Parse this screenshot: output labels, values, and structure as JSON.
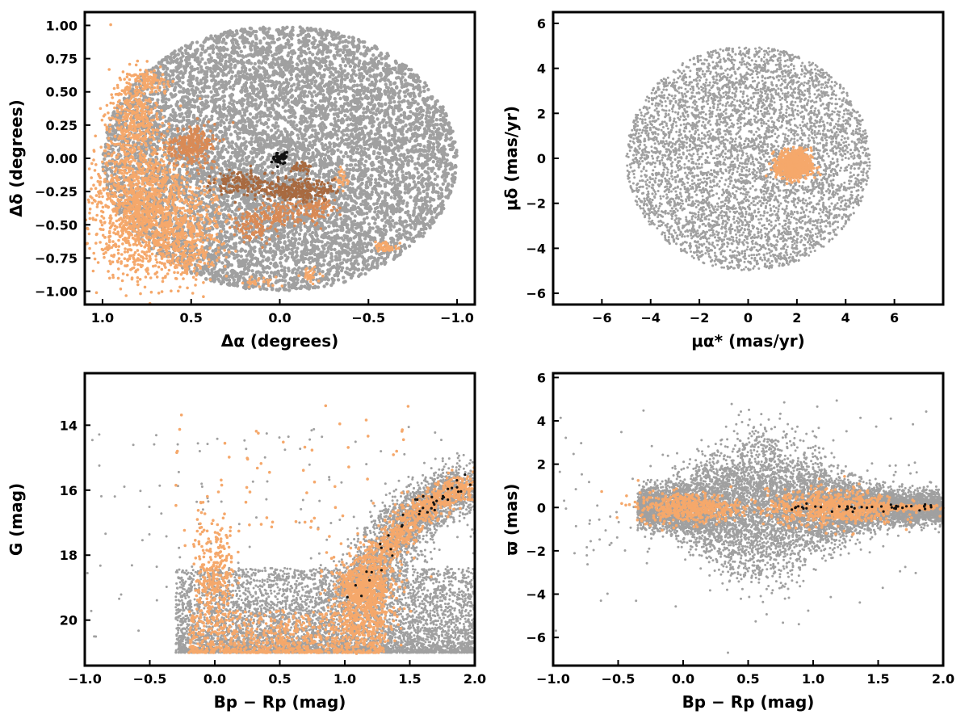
{
  "colors": {
    "field": "#a0a0a0",
    "light_members": "#f5a86b",
    "mid_members": "#d98a55",
    "dark_members": "#a86a40",
    "core": "#111111"
  },
  "chart_data": [
    {
      "type": "scatter",
      "panel": "sky-positions",
      "xlabel": "Δα (degrees)",
      "ylabel": "Δδ (degrees)",
      "xlim": [
        1.1,
        -1.1
      ],
      "ylim": [
        -1.1,
        1.1
      ],
      "x_ticks": [
        1.0,
        0.5,
        0.0,
        -0.5,
        -1.0
      ],
      "x_tick_labels": [
        "1.0",
        "0.5",
        "0.0",
        "−0.5",
        "−1.0"
      ],
      "y_ticks": [
        1.0,
        0.75,
        0.5,
        0.25,
        0.0,
        -0.25,
        -0.5,
        -0.75,
        -1.0
      ],
      "y_tick_labels": [
        "1.00",
        "0.75",
        "0.50",
        "0.25",
        "0.00",
        "−0.25",
        "−0.50",
        "−0.75",
        "−1.00"
      ],
      "grid": false,
      "field_region": {
        "center": [
          0.0,
          0.0
        ],
        "radius_x": 1.0,
        "radius_y": 1.0
      },
      "member_clumps": [
        {
          "group": "light",
          "center": [
            0.78,
            -0.38
          ],
          "spread": [
            0.14,
            0.26
          ],
          "n": 1400
        },
        {
          "group": "light",
          "center": [
            0.82,
            0.32
          ],
          "spread": [
            0.07,
            0.16
          ],
          "n": 380
        },
        {
          "group": "light",
          "center": [
            0.52,
            -0.58
          ],
          "spread": [
            0.1,
            0.18
          ],
          "n": 420
        },
        {
          "group": "light",
          "center": [
            0.72,
            0.58
          ],
          "spread": [
            0.05,
            0.04
          ],
          "n": 80
        },
        {
          "group": "light",
          "center": [
            -0.6,
            -0.67
          ],
          "spread": [
            0.03,
            0.02
          ],
          "n": 40
        },
        {
          "group": "light",
          "center": [
            -0.17,
            -0.88
          ],
          "spread": [
            0.03,
            0.03
          ],
          "n": 30
        },
        {
          "group": "light",
          "center": [
            0.12,
            -0.93
          ],
          "spread": [
            0.04,
            0.02
          ],
          "n": 30
        },
        {
          "group": "light",
          "center": [
            -0.35,
            -0.15
          ],
          "spread": [
            0.02,
            0.04
          ],
          "n": 30
        },
        {
          "group": "mid",
          "center": [
            0.5,
            0.1
          ],
          "spread": [
            0.07,
            0.08
          ],
          "n": 260
        },
        {
          "group": "mid",
          "center": [
            0.15,
            -0.52
          ],
          "spread": [
            0.05,
            0.05
          ],
          "n": 80
        },
        {
          "group": "mid",
          "center": [
            0.0,
            -0.42
          ],
          "spread": [
            0.1,
            0.05
          ],
          "n": 140
        },
        {
          "group": "mid",
          "center": [
            -0.22,
            -0.38
          ],
          "spread": [
            0.06,
            0.05
          ],
          "n": 80
        },
        {
          "group": "dark",
          "center": [
            -0.1,
            -0.24
          ],
          "spread": [
            0.1,
            0.04
          ],
          "n": 260
        },
        {
          "group": "dark",
          "center": [
            0.2,
            -0.18
          ],
          "spread": [
            0.08,
            0.05
          ],
          "n": 150
        },
        {
          "group": "dark",
          "center": [
            -0.12,
            -0.07
          ],
          "spread": [
            0.03,
            0.02
          ],
          "n": 30
        },
        {
          "group": "core",
          "center": [
            0.0,
            0.0
          ],
          "spread": [
            0.02,
            0.02
          ],
          "n": 40
        }
      ]
    },
    {
      "type": "scatter",
      "panel": "proper-motions",
      "xlabel": "μα* (mas/yr)",
      "ylabel": "μδ (mas/yr)",
      "xlim": [
        -8,
        8
      ],
      "ylim": [
        -6.5,
        6.5
      ],
      "x_ticks": [
        -6,
        -4,
        -2,
        0,
        2,
        4,
        6
      ],
      "x_tick_labels": [
        "−6",
        "−4",
        "−2",
        "0",
        "2",
        "4",
        "6"
      ],
      "y_ticks": [
        6,
        4,
        2,
        0,
        -2,
        -4,
        -6
      ],
      "y_tick_labels": [
        "6",
        "4",
        "2",
        "0",
        "−2",
        "−4",
        "−6"
      ],
      "grid": false,
      "field_region": {
        "center": [
          0.0,
          0.0
        ],
        "radius_x": 5.0,
        "radius_y": 5.0
      },
      "member_clumps": [
        {
          "group": "light",
          "center": [
            1.9,
            -0.3
          ],
          "spread": [
            0.35,
            0.32
          ],
          "n": 700
        }
      ]
    },
    {
      "type": "scatter",
      "panel": "color-magnitude",
      "xlabel": "Bp − Rp (mag)",
      "ylabel": "G (mag)",
      "xlim": [
        -1.0,
        2.0
      ],
      "ylim": [
        21.4,
        12.4
      ],
      "x_ticks": [
        -1.0,
        -0.5,
        0.0,
        0.5,
        1.0,
        1.5,
        2.0
      ],
      "x_tick_labels": [
        "−1.0",
        "−0.5",
        "0.0",
        "0.5",
        "1.0",
        "1.5",
        "2.0"
      ],
      "y_ticks": [
        20,
        18,
        16,
        14
      ],
      "y_tick_labels": [
        "20",
        "18",
        "16",
        "14"
      ],
      "grid": false,
      "magnitude_limit": 21.0,
      "sequence": [
        [
          1.05,
          19.2
        ],
        [
          1.2,
          18.6
        ],
        [
          1.35,
          17.6
        ],
        [
          1.5,
          16.9
        ],
        [
          1.7,
          16.3
        ],
        [
          1.95,
          15.8
        ]
      ],
      "member_clumps": [
        {
          "group": "light",
          "center": [
            0.0,
            18.5
          ],
          "spread": [
            0.08,
            0.9
          ],
          "n": 300
        },
        {
          "group": "light",
          "center": [
            1.15,
            19.3
          ],
          "spread": [
            0.12,
            0.7
          ],
          "n": 700
        }
      ]
    },
    {
      "type": "scatter",
      "panel": "parallax-color",
      "xlabel": "Bp − Rp (mag)",
      "ylabel": "ϖ (mas)",
      "xlim": [
        -1.0,
        2.0
      ],
      "ylim": [
        -7.3,
        6.2
      ],
      "x_ticks": [
        -1.0,
        -0.5,
        0.0,
        0.5,
        1.0,
        1.5,
        2.0
      ],
      "x_tick_labels": [
        "−1.0",
        "−0.5",
        "0.0",
        "0.5",
        "1.0",
        "1.5",
        "2.0"
      ],
      "y_ticks": [
        6,
        4,
        2,
        0,
        -2,
        -4,
        -6
      ],
      "y_tick_labels": [
        "6",
        "4",
        "2",
        "0",
        "−2",
        "−4",
        "−6"
      ],
      "grid": false,
      "member_clumps": [
        {
          "group": "light",
          "center": [
            0.05,
            0.0
          ],
          "spread": [
            0.2,
            0.35
          ],
          "n": 500
        },
        {
          "group": "light",
          "center": [
            1.15,
            0.0
          ],
          "spread": [
            0.25,
            0.4
          ],
          "n": 700
        },
        {
          "group": "light",
          "center": [
            1.75,
            0.0
          ],
          "spread": [
            0.15,
            0.05
          ],
          "n": 250
        }
      ]
    }
  ]
}
